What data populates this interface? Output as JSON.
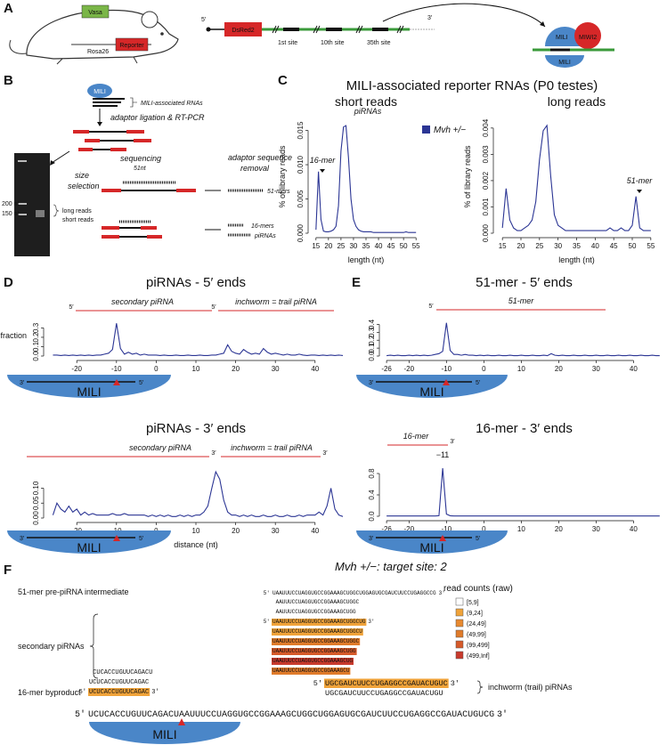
{
  "panel_labels": [
    "A",
    "B",
    "C",
    "D",
    "E",
    "F"
  ],
  "panel_a": {
    "vasa": "Vasa",
    "rosa26": "Rosa26",
    "reporter": "Reporter",
    "five_prime": "5′",
    "dsred": "DsRed2",
    "site1": "1st site",
    "site10": "10th site",
    "site35": "35th site",
    "three_prime": "3′",
    "mili_top": "MILI",
    "partner": "MIWI2",
    "mili_bottom": "MILI"
  },
  "panel_b": {
    "mili": "MILI",
    "rna_label": "MILI-associated RNAs",
    "step1": "adaptor ligation & RT-PCR",
    "marker_200": "200 nt",
    "marker_150": "150 nt",
    "long_reads": "long reads",
    "short_reads": "short reads",
    "size_selection": [
      "size",
      "selection"
    ],
    "sequencing": "sequencing",
    "length": "51nt",
    "adaptor_removal": [
      "adaptor sequence",
      "removal"
    ],
    "out_51": "51-mers",
    "out_16": "16-mers",
    "out_pi": "piRNAs"
  },
  "panel_c": {
    "title": "MILI-associated reporter RNAs (P0 testes)"
  },
  "chart_data": [
    {
      "type": "line",
      "title": "short reads",
      "xlabel": "length (nt)",
      "ylabel": "% of library reads",
      "legend": "right",
      "x": [
        15,
        16,
        17,
        18,
        19,
        20,
        21,
        22,
        23,
        24,
        25,
        26,
        27,
        28,
        29,
        30,
        31,
        32,
        33,
        34,
        35,
        36,
        37,
        38,
        39,
        40,
        41,
        42,
        43,
        44,
        45,
        46,
        47,
        48,
        49,
        50,
        51,
        52,
        53,
        54,
        55
      ],
      "series": [
        {
          "name": "Mvh +/−",
          "color": "#2b3594",
          "values": [
            0.0005,
            0.009,
            0.002,
            0.0003,
            0.0002,
            0.0002,
            0.0003,
            0.0005,
            0.001,
            0.004,
            0.012,
            0.0155,
            0.0157,
            0.011,
            0.005,
            0.002,
            0.001,
            0.0005,
            0.0003,
            0.0002,
            0.0002,
            0.0002,
            0.0002,
            0.0001,
            0.0001,
            0.0001,
            0.0001,
            0.0001,
            0.0001,
            0.0001,
            0.0001,
            0.0001,
            0.0001,
            0.0001,
            0.0001,
            0.0001,
            0.0002,
            0.0001,
            0.0001,
            0.0001,
            0.0001
          ]
        }
      ],
      "xlim": [
        14,
        56
      ],
      "ylim": [
        0,
        0.0165
      ],
      "xticks": [
        15,
        20,
        25,
        30,
        35,
        40,
        45,
        50,
        55
      ],
      "yticks": [
        {
          "value": 0,
          "label": "0.000"
        },
        0.005,
        {
          "value": 0.01,
          "label": "0.010"
        },
        0.015
      ],
      "annotations": [
        {
          "text": "piRNAs"
        },
        {
          "text": "16-mer"
        }
      ]
    },
    {
      "type": "line",
      "title": "long reads",
      "xlabel": "length (nt)",
      "ylabel": "% of library reads",
      "x": [
        15,
        16,
        17,
        18,
        19,
        20,
        21,
        22,
        23,
        24,
        25,
        26,
        27,
        28,
        29,
        30,
        31,
        32,
        33,
        34,
        35,
        36,
        37,
        38,
        39,
        40,
        41,
        42,
        43,
        44,
        45,
        46,
        47,
        48,
        49,
        50,
        51,
        52,
        53,
        54,
        55
      ],
      "series": [
        {
          "color": "#2b3594",
          "values": [
            0.0002,
            0.0017,
            0.0005,
            0.0002,
            0.0001,
            0.0001,
            0.0002,
            0.0003,
            0.0005,
            0.0012,
            0.0028,
            0.0039,
            0.0041,
            0.0022,
            0.0007,
            0.0003,
            0.0002,
            0.0001,
            0.0001,
            0.0001,
            0.0001,
            0.0001,
            0.0001,
            0.0001,
            0.0001,
            0.0001,
            0.0001,
            0.0001,
            0.0001,
            0.0002,
            0.0001,
            0.0001,
            0.0002,
            0.0001,
            0.0001,
            0.0003,
            0.0014,
            0.0002,
            0.0001,
            0.0001,
            0.0001
          ]
        }
      ],
      "xlim": [
        14,
        56
      ],
      "ylim": [
        0,
        0.0043
      ],
      "xticks": [
        15,
        20,
        25,
        30,
        35,
        40,
        45,
        50,
        55
      ],
      "yticks": [
        {
          "value": 0,
          "label": "0.000"
        },
        0.001,
        0.002,
        0.003,
        0.004
      ],
      "annotations": [
        {
          "text": "51-mer"
        }
      ]
    },
    {
      "type": "line",
      "title": "piRNAs - 5′ ends",
      "ylabel": "fraction",
      "x": [
        -26,
        -25,
        -24,
        -23,
        -22,
        -21,
        -20,
        -19,
        -18,
        -17,
        -16,
        -15,
        -14,
        -13,
        -12,
        -11,
        -10,
        -9,
        -8,
        -7,
        -6,
        -5,
        -4,
        -3,
        -2,
        -1,
        0,
        1,
        2,
        3,
        4,
        5,
        6,
        7,
        8,
        9,
        10,
        11,
        12,
        13,
        14,
        15,
        16,
        17,
        18,
        19,
        20,
        21,
        22,
        23,
        24,
        25,
        26,
        27,
        28,
        29,
        30,
        31,
        32,
        33,
        34,
        35,
        36,
        37,
        38,
        39,
        40,
        41,
        42,
        43,
        44,
        45,
        46,
        47
      ],
      "series": [
        {
          "color": "#2b3594",
          "values": [
            0.01,
            0.01,
            0.005,
            0.01,
            0.005,
            0.01,
            0.005,
            0.01,
            0.005,
            0.01,
            0.005,
            0.01,
            0.01,
            0.02,
            0.03,
            0.07,
            0.35,
            0.08,
            0.02,
            0.04,
            0.02,
            0.03,
            0.01,
            0.02,
            0.01,
            0.01,
            0.01,
            0.005,
            0.01,
            0.005,
            0.005,
            0.01,
            0.005,
            0.005,
            0.01,
            0.005,
            0.005,
            0.01,
            0.005,
            0.005,
            0.01,
            0.01,
            0.02,
            0.03,
            0.12,
            0.05,
            0.03,
            0.02,
            0.07,
            0.04,
            0.02,
            0.03,
            0.02,
            0.08,
            0.04,
            0.02,
            0.03,
            0.02,
            0.01,
            0.02,
            0.01,
            0.01,
            0.02,
            0.01,
            0.005,
            0.01,
            0.01,
            0.005,
            0.01,
            0.005,
            0.01,
            0.005,
            0.01,
            0.005
          ]
        }
      ],
      "xlim": [
        -27,
        47
      ],
      "ylim": [
        0,
        0.38
      ],
      "xticks": [
        -20,
        -10,
        0,
        10,
        20,
        30,
        40
      ],
      "yticks": [
        {
          "value": 0,
          "label": "0.0"
        },
        0.1,
        0.2,
        0.3
      ],
      "annotations": [
        {
          "text": "secondary piRNA",
          "end": "5′"
        },
        {
          "text": "inchworm = trail piRNA",
          "end": "5′"
        }
      ],
      "footprint": {
        "three": "3′",
        "five": "5′",
        "protein": "MILI"
      }
    },
    {
      "type": "line",
      "title": "piRNAs - 3′ ends",
      "xlabel": "distance (nt)",
      "x": [
        -26,
        -25,
        -24,
        -23,
        -22,
        -21,
        -20,
        -19,
        -18,
        -17,
        -16,
        -15,
        -14,
        -13,
        -12,
        -11,
        -10,
        -9,
        -8,
        -7,
        -6,
        -5,
        -4,
        -3,
        -2,
        -1,
        0,
        1,
        2,
        3,
        4,
        5,
        6,
        7,
        8,
        9,
        10,
        11,
        12,
        13,
        14,
        15,
        16,
        17,
        18,
        19,
        20,
        21,
        22,
        23,
        24,
        25,
        26,
        27,
        28,
        29,
        30,
        31,
        32,
        33,
        34,
        35,
        36,
        37,
        38,
        39,
        40,
        41,
        42,
        43,
        44,
        45,
        46,
        47
      ],
      "series": [
        {
          "color": "#2b3594",
          "values": [
            0.01,
            0.05,
            0.03,
            0.02,
            0.04,
            0.02,
            0.03,
            0.01,
            0.02,
            0.01,
            0.015,
            0.01,
            0.01,
            0.01,
            0.01,
            0.015,
            0.01,
            0.01,
            0.015,
            0.01,
            0.01,
            0.01,
            0.01,
            0.01,
            0.005,
            0.01,
            0.005,
            0.01,
            0.005,
            0.01,
            0.005,
            0.005,
            0.01,
            0.005,
            0.01,
            0.005,
            0.01,
            0.01,
            0.02,
            0.04,
            0.1,
            0.155,
            0.13,
            0.06,
            0.02,
            0.01,
            0.01,
            0.005,
            0.01,
            0.005,
            0.01,
            0.005,
            0.005,
            0.01,
            0.005,
            0.005,
            0.01,
            0.005,
            0.005,
            0.01,
            0.005,
            0.005,
            0.01,
            0.005,
            0.01,
            0.01,
            0.01,
            0.02,
            0.01,
            0.04,
            0.1,
            0.03,
            0.01,
            0.005
          ]
        }
      ],
      "xlim": [
        -27,
        47
      ],
      "ylim": [
        0,
        0.17
      ],
      "xticks": [
        -20,
        -10,
        0,
        10,
        20,
        30,
        40
      ],
      "yticks": [
        {
          "value": 0,
          "label": "0.00"
        },
        0.05,
        {
          "value": 0.1,
          "label": "0.10"
        }
      ],
      "annotations": [
        {
          "text": "secondary piRNA",
          "end": "3′"
        },
        {
          "text": "inchworm = trail piRNA",
          "end": "3′"
        }
      ],
      "footprint": {
        "three": "3′",
        "five": "5′",
        "protein": "MILI"
      }
    },
    {
      "type": "line",
      "title": "51-mer - 5′ ends",
      "x": [
        -26,
        -25,
        -24,
        -23,
        -22,
        -21,
        -20,
        -19,
        -18,
        -17,
        -16,
        -15,
        -14,
        -13,
        -12,
        -11,
        -10,
        -9,
        -8,
        -7,
        -6,
        -5,
        -4,
        -3,
        -2,
        -1,
        0,
        1,
        2,
        3,
        4,
        5,
        6,
        7,
        8,
        9,
        10,
        11,
        12,
        13,
        14,
        15,
        16,
        17,
        18,
        19,
        20,
        21,
        22,
        23,
        24,
        25,
        26,
        27,
        28,
        29,
        30,
        31,
        32,
        33,
        34,
        35,
        36,
        37,
        38,
        39,
        40,
        41,
        42,
        43,
        44,
        45,
        46,
        47
      ],
      "series": [
        {
          "color": "#2b3594",
          "values": [
            0.005,
            0.01,
            0.005,
            0.01,
            0.005,
            0.005,
            0.01,
            0.005,
            0.01,
            0.005,
            0.01,
            0.005,
            0.01,
            0.02,
            0.03,
            0.06,
            0.42,
            0.07,
            0.02,
            0.02,
            0.01,
            0.02,
            0.01,
            0.01,
            0.005,
            0.01,
            0.005,
            0.01,
            0.005,
            0.005,
            0.01,
            0.005,
            0.005,
            0.01,
            0.005,
            0.005,
            0.01,
            0.005,
            0.005,
            0.01,
            0.005,
            0.005,
            0.01,
            0.005,
            0.03,
            0.01,
            0.005,
            0.01,
            0.005,
            0.005,
            0.01,
            0.005,
            0.005,
            0.01,
            0.005,
            0.005,
            0.01,
            0.005,
            0.005,
            0.01,
            0.005,
            0.005,
            0.01,
            0.005,
            0.005,
            0.01,
            0.005,
            0.005,
            0.01,
            0.005,
            0.005,
            0.01,
            0.005,
            0.005
          ]
        }
      ],
      "xlim": [
        -26.5,
        48
      ],
      "ylim": [
        0,
        0.45
      ],
      "xticks": [
        -26,
        -20,
        -10,
        0,
        10,
        20,
        30,
        40
      ],
      "yticks": [
        {
          "value": 0,
          "label": "0.0"
        },
        0.1,
        0.2,
        0.3,
        0.4
      ],
      "annotations": [
        {
          "text": "51-mer",
          "end": "5′"
        }
      ],
      "footprint": {
        "three": "3′",
        "five": "5′",
        "protein": "MILI"
      }
    },
    {
      "type": "line",
      "title": "16-mer - 3′ ends",
      "x": [
        -26,
        -25,
        -24,
        -23,
        -22,
        -21,
        -20,
        -19,
        -18,
        -17,
        -16,
        -15,
        -14,
        -13,
        -12,
        -11,
        -10,
        -9,
        -8,
        -7,
        -6,
        -5,
        -4,
        -3,
        -2,
        -1,
        0,
        1,
        2,
        3,
        4,
        5,
        6,
        7,
        8,
        9,
        10,
        11,
        12,
        13,
        14,
        15,
        16,
        17,
        18,
        19,
        20,
        21,
        22,
        23,
        24,
        25,
        26,
        27,
        28,
        29,
        30,
        31,
        32,
        33,
        34,
        35,
        36,
        37,
        38,
        39,
        40,
        41,
        42,
        43,
        44,
        45,
        46,
        47
      ],
      "series": [
        {
          "color": "#2b3594",
          "values": [
            0.005,
            0.005,
            0.005,
            0.005,
            0.005,
            0.005,
            0.005,
            0.005,
            0.005,
            0.005,
            0.005,
            0.005,
            0.005,
            0.005,
            0.01,
            0.9,
            0.04,
            0.01,
            0.005,
            0.005,
            0.005,
            0.005,
            0.005,
            0.005,
            0.005,
            0.005,
            0.005,
            0.005,
            0.005,
            0.005,
            0.005,
            0.005,
            0.005,
            0.005,
            0.005,
            0.005,
            0.005,
            0.005,
            0.005,
            0.005,
            0.005,
            0.005,
            0.005,
            0.005,
            0.005,
            0.005,
            0.005,
            0.005,
            0.005,
            0.005,
            0.005,
            0.005,
            0.005,
            0.005,
            0.005,
            0.005,
            0.005,
            0.005,
            0.005,
            0.005,
            0.005,
            0.005,
            0.005,
            0.005,
            0.005,
            0.005,
            0.005,
            0.005,
            0.005,
            0.005,
            0.005,
            0.005,
            0.005,
            0.005
          ]
        }
      ],
      "xlim": [
        -26.5,
        48
      ],
      "ylim": [
        0,
        1.0
      ],
      "xticks": [
        -26,
        -20,
        -10,
        0,
        10,
        20,
        30,
        40
      ],
      "yticks": [
        {
          "value": 0,
          "label": "0.0"
        },
        0.4,
        0.8
      ],
      "annotations": [
        {
          "text": "16-mer",
          "end": "3′"
        },
        {
          "text": "−11"
        }
      ],
      "footprint": {
        "three": "3′",
        "five": "5′",
        "protein": "MILI"
      }
    }
  ],
  "panel_f": {
    "title": "Mvh +/−: target site: 2",
    "legend_title": "read counts (raw)",
    "bins": [
      {
        "label": "[5,9]",
        "color": "#ffffff"
      },
      {
        "label": "(9,24]",
        "color": "#f0a33a"
      },
      {
        "label": "(24,49]",
        "color": "#e88a30"
      },
      {
        "label": "(49,99]",
        "color": "#e07b2a"
      },
      {
        "label": "(99,499]",
        "color": "#d65a2a"
      },
      {
        "label": "(499,Inf]",
        "color": "#c83a2c"
      }
    ],
    "label_51": "51-mer pre-piRNA intermediate",
    "label_secondary": "secondary piRNAs",
    "label_16": "16-mer byproduct",
    "label_trail": "inchworm (trail) piRNAs",
    "row_51": {
      "five": "5′",
      "seq": "UAAUUUCCUAGGUGCCGGAAAGCUGGCUGGAGUGCGAUCUUCCUGAGGCCG",
      "three": "3′"
    },
    "secondary": [
      {
        "seq": "AAUUUCCUAGGUGCCGGAAAGCUGGC"
      },
      {
        "seq": "AAUUUCCUAGGUGCCGGAAAGCUGG"
      },
      {
        "five": "5′",
        "seq": "UAAUUUCCUAGGUGCCGGAAAGCUGGCUG",
        "three": "3′",
        "color": "#f0a33a"
      },
      {
        "seq": "UAAUUUCCUAGGUGCCGGAAAGCUGGCU",
        "color": "#f0a33a"
      },
      {
        "seq": "UAAUUUCCUAGGUGCCGGAAAGCUGGC",
        "color": "#e07b2a"
      },
      {
        "seq": "UAAUUUCCUAGGUGCCGGAAAGCUGG",
        "color": "#d65a2a"
      },
      {
        "seq": "UAAUUUCCUAGGUGCCGGAAAGCUG",
        "color": "#c83a2c"
      },
      {
        "seq": "UAAUUUCCUAGGUGCCGGAAAGCU",
        "color": "#e07b2a"
      }
    ],
    "byproduct": [
      {
        "seq": "CUCACCUGUUCAGACU"
      },
      {
        "seq": "UCUCACCUGUUCAGAC"
      },
      {
        "five": "5′",
        "seq": "UCUCACCUGUUCAGAC",
        "three": "3′",
        "color": "#f0a33a"
      }
    ],
    "trail": [
      {
        "five": "5′",
        "seq": "UGCGAUCUUCCUGAGGCCGAUACUGUC",
        "three": "3′",
        "color": "#f0a33a"
      },
      {
        "seq": "UGCGAUCUUCCUGAGGCCGAUACUGU"
      }
    ],
    "target": {
      "five": "5′",
      "seq": "UCUCACCUGUUCAGACUAAUUUCCUAGGUGCCGGAAAGCUGGCUGGAGUGCGAUCUUCCUGAGGCCGAUACUGUCG",
      "three": "3′"
    },
    "protein": "MILI"
  }
}
